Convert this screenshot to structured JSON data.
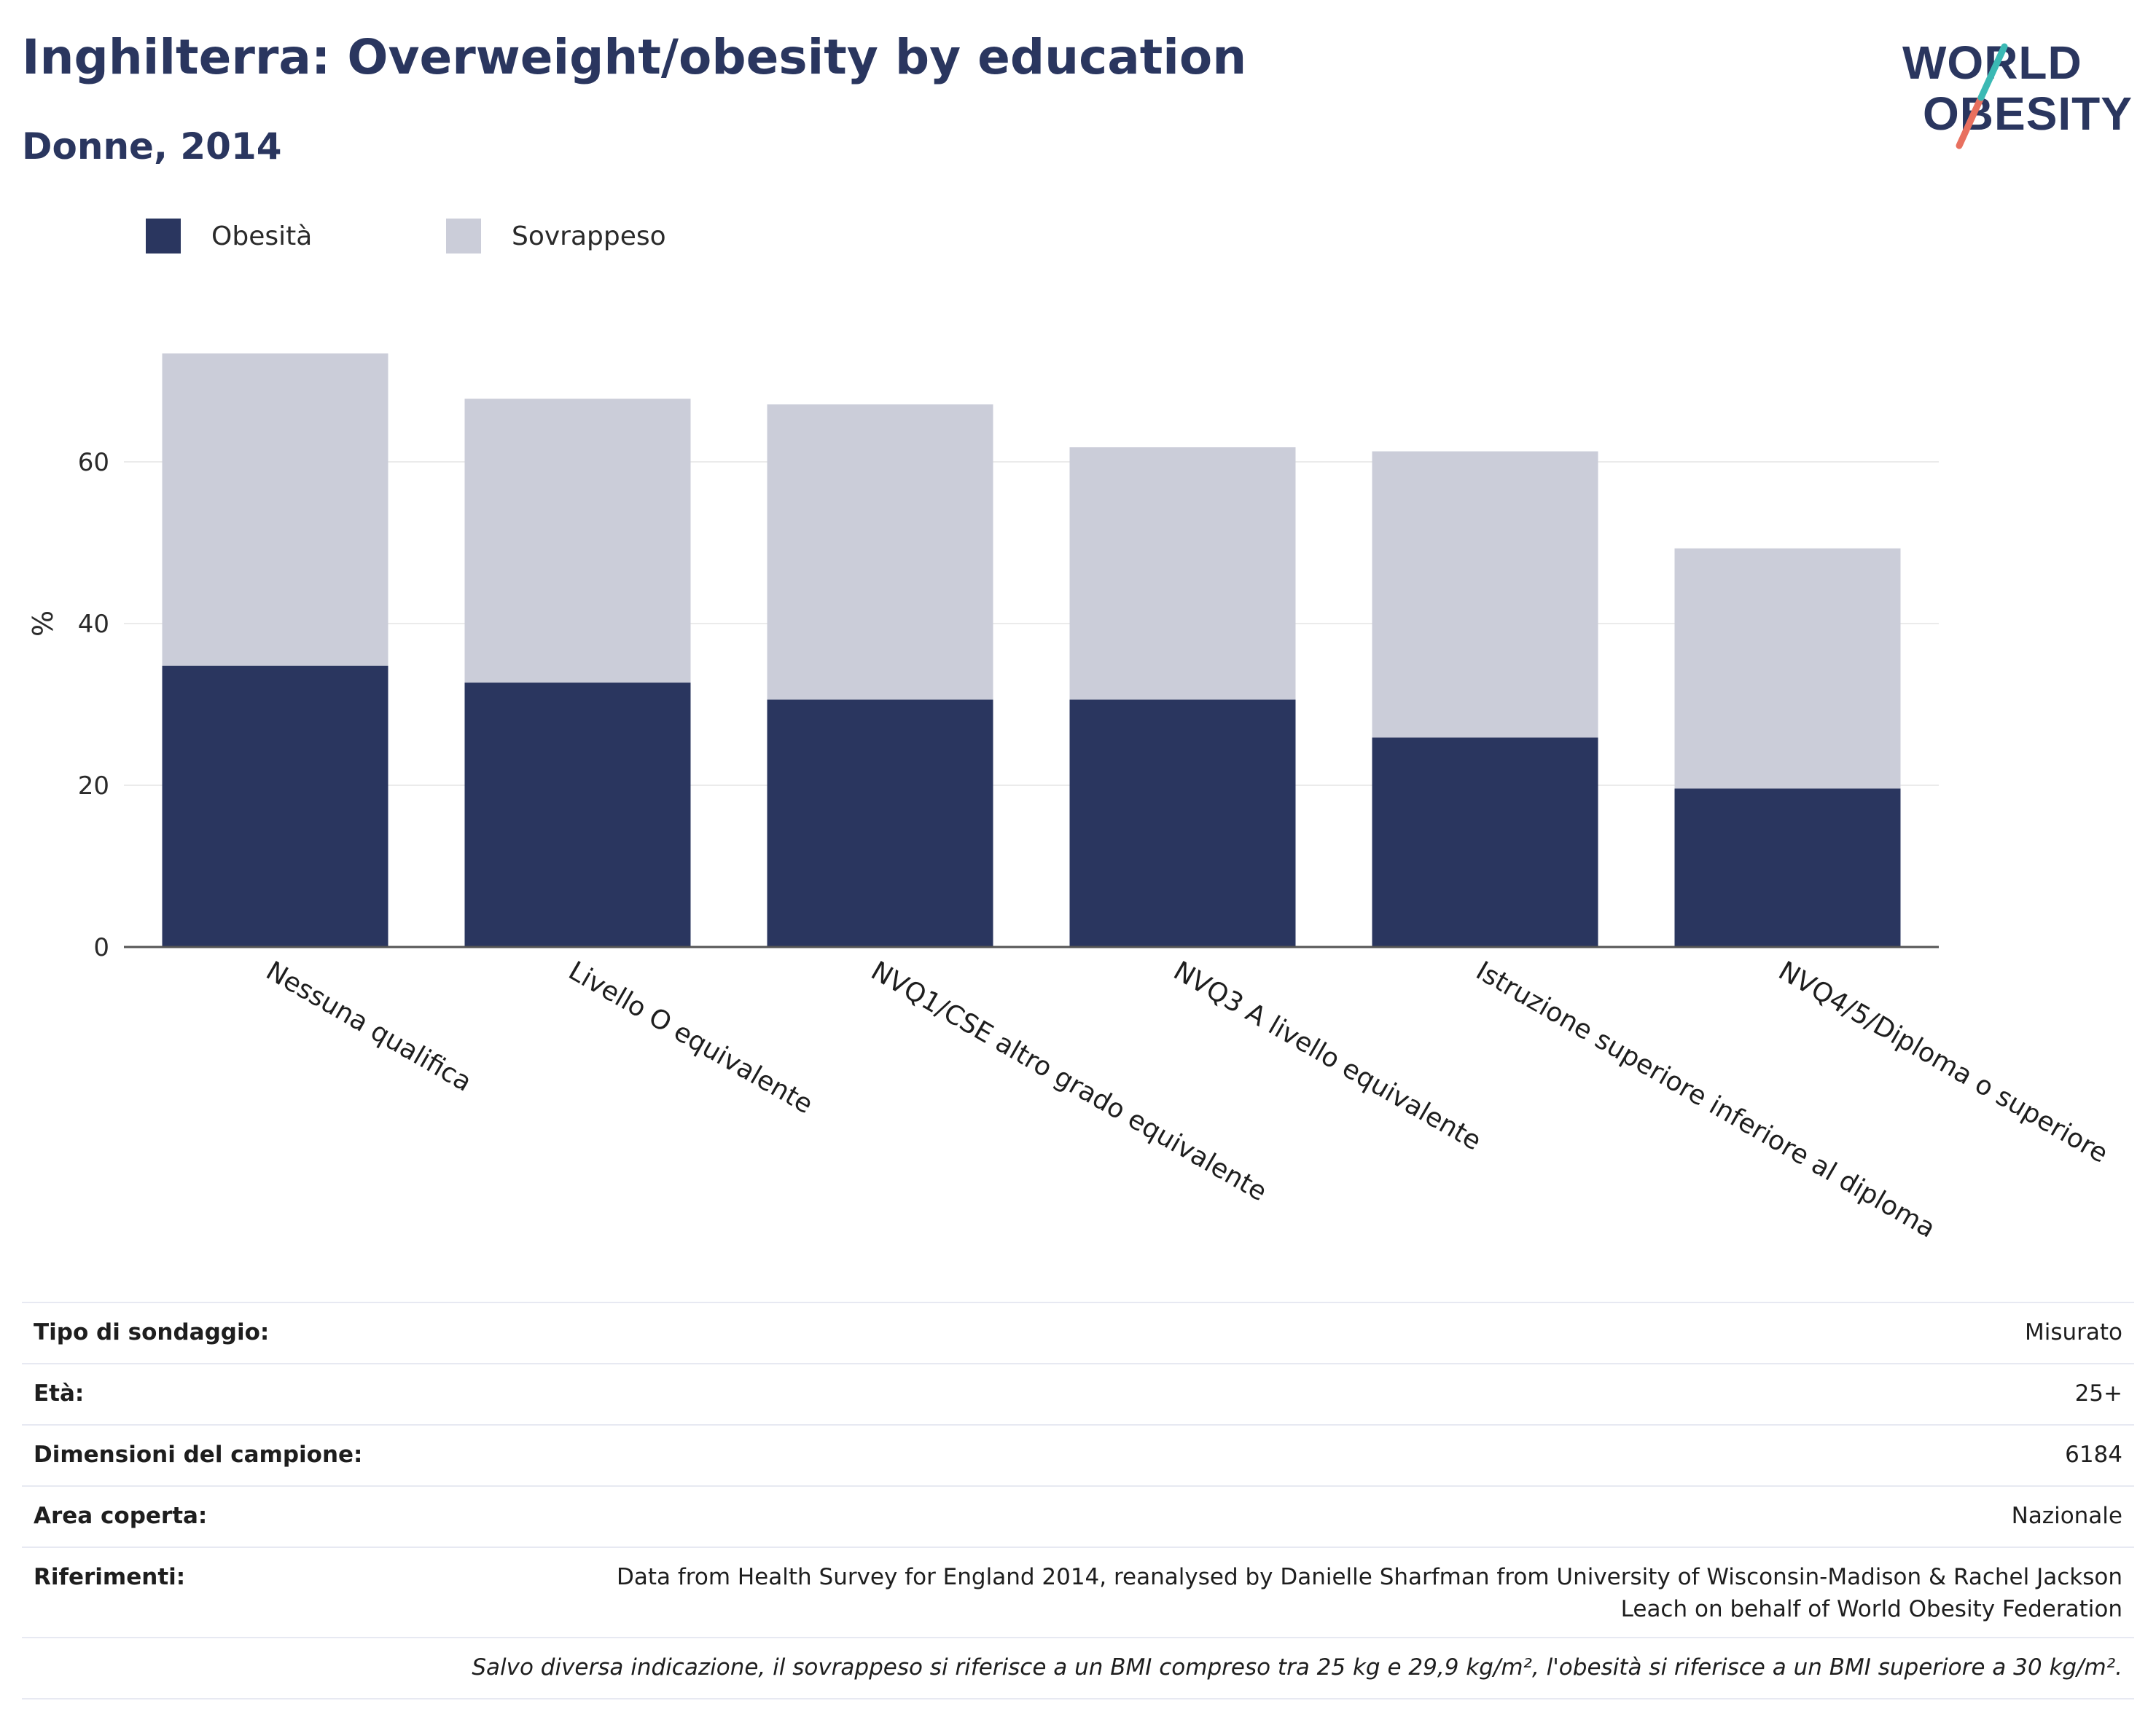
{
  "header": {
    "title": "Inghilterra: Overweight/obesity by education",
    "subtitle": "Donne, 2014"
  },
  "logo": {
    "line1": "WORLD",
    "line2": "OBESITY",
    "accent_teal": "#3bb9b4",
    "accent_coral": "#e8705f"
  },
  "colors": {
    "obesity": "#2a365f",
    "overweight": "#cbcdd9",
    "axis": "#555555",
    "grid": "#ebebeb"
  },
  "chart_data": {
    "type": "bar",
    "stacked": true,
    "categories": [
      "Nessuna qualifica",
      "Livello O equivalente",
      "NVQ1/CSE altro grado equivalente",
      "NVQ3 A livello equivalente",
      "Istruzione superiore inferiore al diploma",
      "NVQ4/5/Diploma o superiore"
    ],
    "series": [
      {
        "name": "Obesità",
        "values": [
          34.8,
          32.7,
          30.6,
          30.6,
          25.9,
          19.6
        ]
      },
      {
        "name": "Sovrappeso",
        "values": [
          38.6,
          35.1,
          36.5,
          31.2,
          35.4,
          29.7
        ]
      }
    ],
    "ylabel": "%",
    "yticks": [
      0,
      20,
      40,
      60
    ],
    "ylim": [
      0,
      80
    ],
    "grid": true,
    "legend": "top-left"
  },
  "info": {
    "rows": [
      {
        "key": "Tipo di sondaggio:",
        "value": "Misurato"
      },
      {
        "key": "Età:",
        "value": "25+"
      },
      {
        "key": "Dimensioni del campione:",
        "value": "6184"
      },
      {
        "key": "Area coperta:",
        "value": "Nazionale"
      }
    ],
    "references_key": "Riferimenti:",
    "references_line1": "Data from Health Survey for England 2014, reanalysed by Danielle Sharfman from University of Wisconsin-Madison & Rachel Jackson",
    "references_line2": "Leach on behalf of World Obesity Federation",
    "note": "Salvo diversa indicazione, il sovrappeso si riferisce a un BMI compreso tra 25 kg e 29,9 kg/m², l'obesità si riferisce a un BMI superiore a 30 kg/m²."
  }
}
